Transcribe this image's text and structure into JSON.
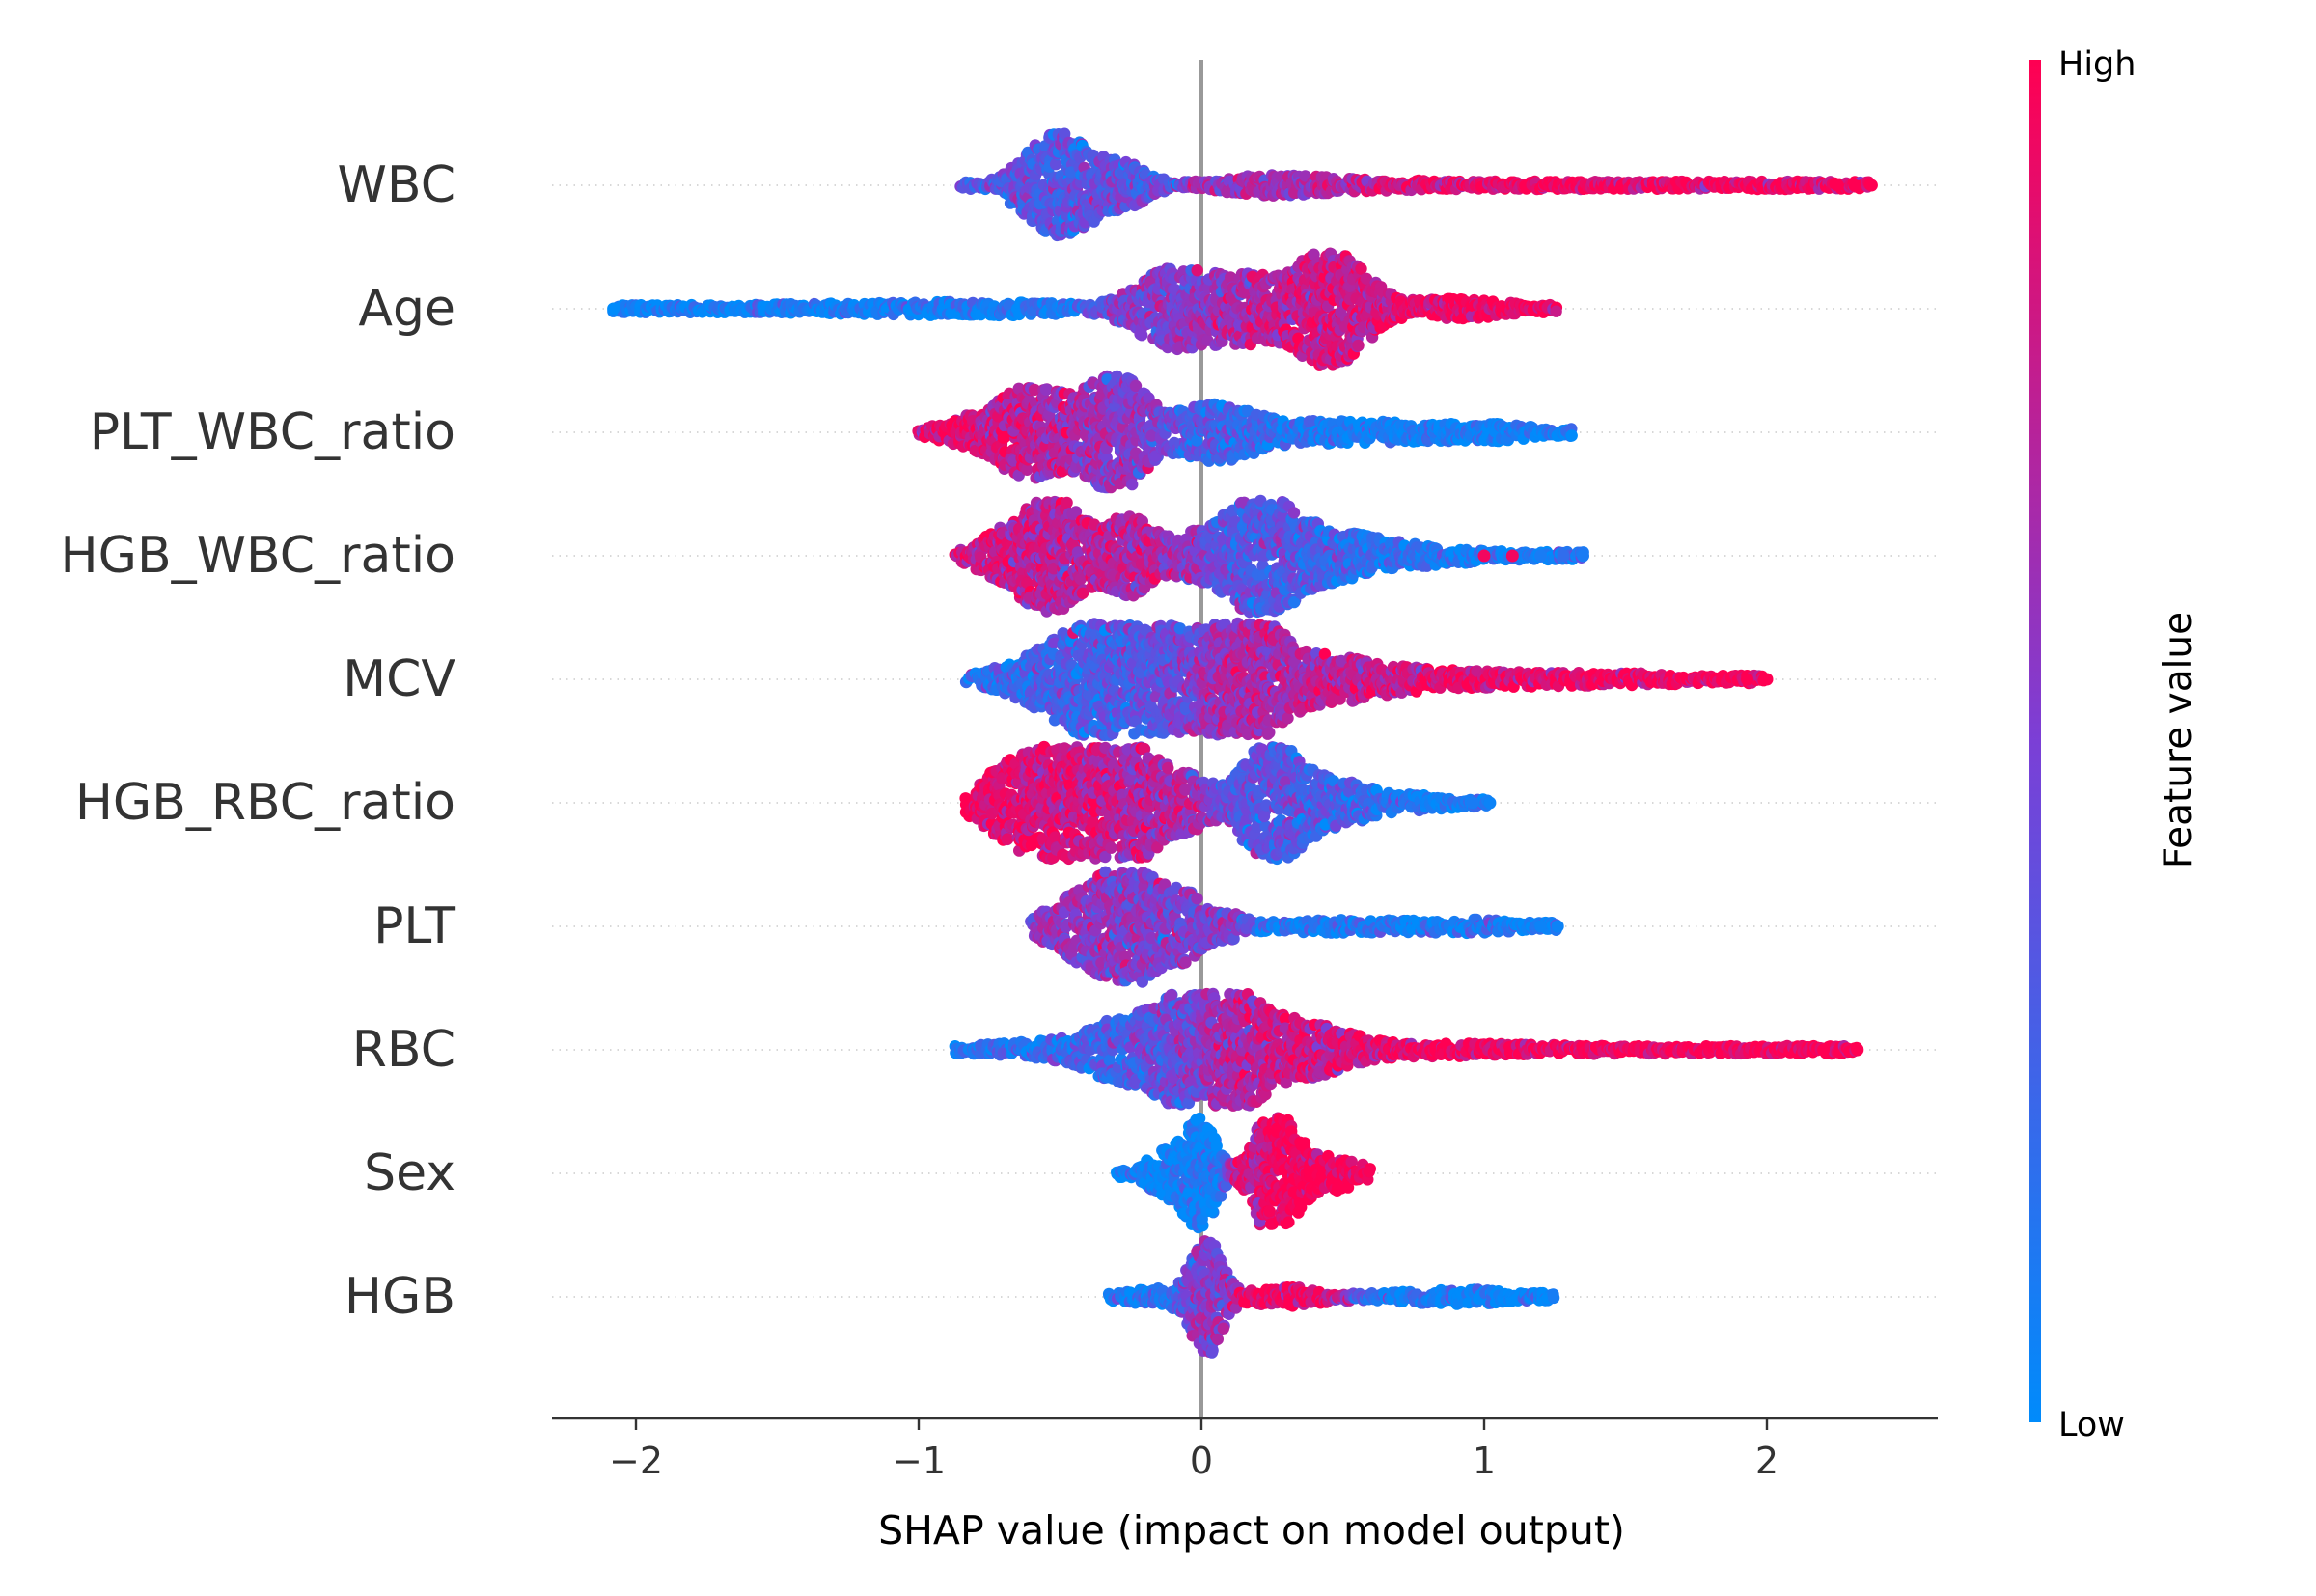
{
  "chart_data": {
    "type": "scatter",
    "subtype": "beeswarm",
    "title": "",
    "xlabel": "SHAP value (impact on model output)",
    "ylabel": "",
    "xlim": [
      -2.3,
      2.6
    ],
    "xticks": [
      -2,
      -1,
      0,
      1,
      2
    ],
    "xtick_labels": [
      "−2",
      "−1",
      "0",
      "1",
      "2"
    ],
    "grid": false,
    "features": [
      "WBC",
      "Age",
      "PLT_WBC_ratio",
      "HGB_WBC_ratio",
      "MCV",
      "HGB_RBC_ratio",
      "PLT",
      "RBC",
      "Sex",
      "HGB"
    ],
    "series": [
      {
        "feature": "WBC",
        "min": -0.85,
        "max": 2.37,
        "outliers": [
          {
            "x": 2.25,
            "f": 1
          },
          {
            "x": 2.31,
            "f": 1
          },
          {
            "x": 2.37,
            "f": 1
          }
        ],
        "clusters": [
          {
            "cx": -0.5,
            "sd": 0.12,
            "w": 0.8,
            "c": 0.35
          },
          {
            "cx": -0.25,
            "sd": 0.08,
            "w": 0.25,
            "c": 0.4
          },
          {
            "cx": 0.25,
            "sd": 0.18,
            "w": 0.15,
            "c": 0.6
          },
          {
            "cx": 0.7,
            "sd": 0.25,
            "w": 0.07,
            "c": 0.85
          },
          {
            "cx": 1.5,
            "sd": 0.4,
            "w": 0.045,
            "c": 0.95
          }
        ]
      },
      {
        "feature": "Age",
        "min": -2.08,
        "max": 1.26,
        "outliers": [
          {
            "x": -2.08,
            "f": 0
          }
        ],
        "clusters": [
          {
            "cx": -1.4,
            "sd": 0.4,
            "w": 0.07,
            "c": 0.05
          },
          {
            "cx": -0.7,
            "sd": 0.3,
            "w": 0.09,
            "c": 0.12
          },
          {
            "cx": -0.1,
            "sd": 0.12,
            "w": 0.6,
            "c": 0.55
          },
          {
            "cx": 0.15,
            "sd": 0.1,
            "w": 0.45,
            "c": 0.7
          },
          {
            "cx": 0.45,
            "sd": 0.12,
            "w": 0.9,
            "c": 0.8
          },
          {
            "cx": 0.9,
            "sd": 0.2,
            "w": 0.15,
            "c": 0.95
          }
        ]
      },
      {
        "feature": "PLT_WBC_ratio",
        "min": -1.0,
        "max": 1.32,
        "outliers": [],
        "clusters": [
          {
            "cx": -0.85,
            "sd": 0.1,
            "w": 0.15,
            "c": 0.92
          },
          {
            "cx": -0.6,
            "sd": 0.12,
            "w": 0.7,
            "c": 0.75
          },
          {
            "cx": -0.3,
            "sd": 0.1,
            "w": 0.9,
            "c": 0.55
          },
          {
            "cx": 0.05,
            "sd": 0.12,
            "w": 0.4,
            "c": 0.3
          },
          {
            "cx": 0.5,
            "sd": 0.3,
            "w": 0.18,
            "c": 0.1
          },
          {
            "cx": 1.05,
            "sd": 0.15,
            "w": 0.1,
            "c": 0.05
          }
        ]
      },
      {
        "feature": "HGB_WBC_ratio",
        "min": -0.87,
        "max": 1.35,
        "outliers": [
          {
            "x": 1.0,
            "f": 0.95
          },
          {
            "x": 1.1,
            "f": 0.95
          },
          {
            "x": 1.2,
            "f": 0.1
          },
          {
            "x": 1.28,
            "f": 0.2
          },
          {
            "x": 1.35,
            "f": 0.1
          }
        ],
        "clusters": [
          {
            "cx": -0.7,
            "sd": 0.1,
            "w": 0.3,
            "c": 0.8
          },
          {
            "cx": -0.52,
            "sd": 0.1,
            "w": 0.85,
            "c": 0.75
          },
          {
            "cx": -0.25,
            "sd": 0.08,
            "w": 0.6,
            "c": 0.7
          },
          {
            "cx": -0.05,
            "sd": 0.06,
            "w": 0.2,
            "c": 0.65
          },
          {
            "cx": 0.2,
            "sd": 0.13,
            "w": 0.9,
            "c": 0.35
          },
          {
            "cx": 0.5,
            "sd": 0.15,
            "w": 0.3,
            "c": 0.25
          },
          {
            "cx": 0.85,
            "sd": 0.2,
            "w": 0.12,
            "c": 0.1
          }
        ]
      },
      {
        "feature": "MCV",
        "min": -0.83,
        "max": 2.0,
        "outliers": [
          {
            "x": 1.93,
            "f": 1
          },
          {
            "x": 2.0,
            "f": 1
          }
        ],
        "clusters": [
          {
            "cx": -0.6,
            "sd": 0.15,
            "w": 0.2,
            "c": 0.2
          },
          {
            "cx": -0.35,
            "sd": 0.15,
            "w": 0.85,
            "c": 0.3
          },
          {
            "cx": -0.1,
            "sd": 0.1,
            "w": 0.5,
            "c": 0.45
          },
          {
            "cx": 0.15,
            "sd": 0.12,
            "w": 0.9,
            "c": 0.65
          },
          {
            "cx": 0.45,
            "sd": 0.2,
            "w": 0.3,
            "c": 0.75
          },
          {
            "cx": 1.0,
            "sd": 0.35,
            "w": 0.12,
            "c": 0.9
          },
          {
            "cx": 1.6,
            "sd": 0.2,
            "w": 0.06,
            "c": 0.98
          }
        ]
      },
      {
        "feature": "HGB_RBC_ratio",
        "min": -0.83,
        "max": 1.02,
        "outliers": [
          {
            "x": 0.96,
            "f": 0.1
          },
          {
            "x": 1.02,
            "f": 0.05
          }
        ],
        "clusters": [
          {
            "cx": -0.7,
            "sd": 0.1,
            "w": 0.4,
            "c": 0.95
          },
          {
            "cx": -0.5,
            "sd": 0.12,
            "w": 0.8,
            "c": 0.85
          },
          {
            "cx": -0.25,
            "sd": 0.12,
            "w": 0.9,
            "c": 0.7
          },
          {
            "cx": -0.02,
            "sd": 0.06,
            "w": 0.25,
            "c": 0.6
          },
          {
            "cx": 0.25,
            "sd": 0.1,
            "w": 0.95,
            "c": 0.35
          },
          {
            "cx": 0.5,
            "sd": 0.12,
            "w": 0.3,
            "c": 0.25
          },
          {
            "cx": 0.8,
            "sd": 0.12,
            "w": 0.1,
            "c": 0.1
          }
        ]
      },
      {
        "feature": "PLT",
        "min": -0.6,
        "max": 1.26,
        "outliers": [
          {
            "x": 1.2,
            "f": 0.05
          },
          {
            "x": 1.26,
            "f": 0.05
          }
        ],
        "clusters": [
          {
            "cx": -0.45,
            "sd": 0.1,
            "w": 0.4,
            "c": 0.6
          },
          {
            "cx": -0.25,
            "sd": 0.1,
            "w": 0.95,
            "c": 0.55
          },
          {
            "cx": -0.05,
            "sd": 0.06,
            "w": 0.4,
            "c": 0.5
          },
          {
            "cx": 0.1,
            "sd": 0.05,
            "w": 0.15,
            "c": 0.65
          },
          {
            "cx": 0.5,
            "sd": 0.3,
            "w": 0.1,
            "c": 0.1
          },
          {
            "cx": 1.0,
            "sd": 0.15,
            "w": 0.08,
            "c": 0.05
          }
        ]
      },
      {
        "feature": "RBC",
        "min": -0.87,
        "max": 2.32,
        "outliers": [
          {
            "x": 2.2,
            "f": 1
          },
          {
            "x": 2.32,
            "f": 1
          }
        ],
        "clusters": [
          {
            "cx": -0.6,
            "sd": 0.18,
            "w": 0.12,
            "c": 0.15
          },
          {
            "cx": -0.25,
            "sd": 0.13,
            "w": 0.5,
            "c": 0.3
          },
          {
            "cx": -0.05,
            "sd": 0.08,
            "w": 0.7,
            "c": 0.45
          },
          {
            "cx": 0.1,
            "sd": 0.1,
            "w": 0.85,
            "c": 0.7
          },
          {
            "cx": 0.35,
            "sd": 0.15,
            "w": 0.4,
            "c": 0.8
          },
          {
            "cx": 0.9,
            "sd": 0.35,
            "w": 0.1,
            "c": 0.95
          },
          {
            "cx": 1.7,
            "sd": 0.3,
            "w": 0.05,
            "c": 1.0
          }
        ]
      },
      {
        "feature": "Sex",
        "min": -0.3,
        "max": 0.6,
        "outliers": [],
        "clusters": [
          {
            "cx": -0.12,
            "sd": 0.07,
            "w": 0.35,
            "c": 0.02
          },
          {
            "cx": 0.0,
            "sd": 0.05,
            "w": 0.8,
            "c": 0.05
          },
          {
            "cx": 0.2,
            "sd": 0.02,
            "w": 0.25,
            "c": 0.05
          },
          {
            "cx": 0.28,
            "sd": 0.08,
            "w": 0.85,
            "c": 1.0
          },
          {
            "cx": 0.5,
            "sd": 0.06,
            "w": 0.25,
            "c": 1.0
          }
        ]
      },
      {
        "feature": "HGB",
        "min": -0.33,
        "max": 1.25,
        "outliers": [],
        "clusters": [
          {
            "cx": -0.15,
            "sd": 0.1,
            "w": 0.15,
            "c": 0.1
          },
          {
            "cx": 0.02,
            "sd": 0.05,
            "w": 0.9,
            "c": 0.55
          },
          {
            "cx": 0.3,
            "sd": 0.12,
            "w": 0.15,
            "c": 0.95
          },
          {
            "cx": 0.9,
            "sd": 0.2,
            "w": 0.12,
            "c": 0.05
          }
        ]
      }
    ],
    "colorbar": {
      "label": "Feature value",
      "high_label": "High",
      "low_label": "Low",
      "low_color": "#008bfb",
      "mid_color": "#7b3fd6",
      "high_color": "#ff0052"
    },
    "zero_line_color": "#999999"
  }
}
